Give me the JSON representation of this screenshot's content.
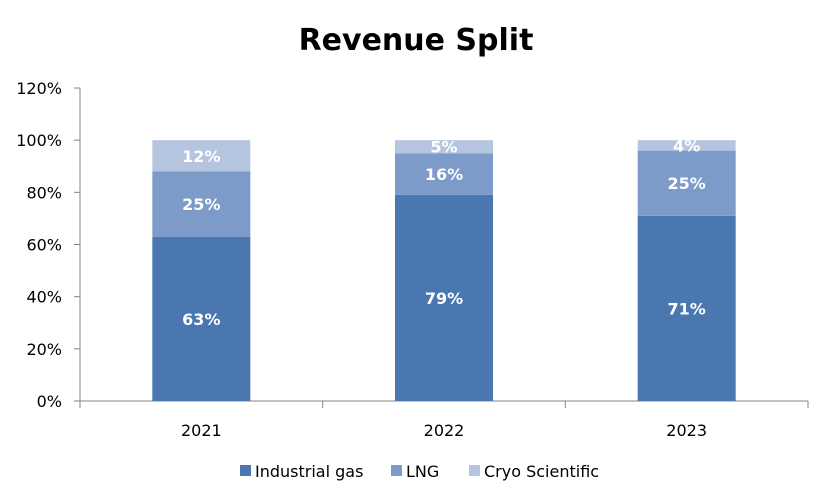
{
  "chart_data": {
    "type": "bar",
    "stacked": true,
    "title": "Revenue Split",
    "xlabel": "",
    "ylabel": "",
    "categories": [
      "2021",
      "2022",
      "2023"
    ],
    "series": [
      {
        "name": "Industrial gas",
        "values": [
          63,
          79,
          71
        ],
        "labels": [
          "63%",
          "79%",
          "71%"
        ],
        "color": "#4a77af"
      },
      {
        "name": "LNG",
        "values": [
          25,
          16,
          25
        ],
        "labels": [
          "25%",
          "16%",
          "25%"
        ],
        "color": "#7d9bc8"
      },
      {
        "name": "Cryo Scientific",
        "values": [
          12,
          5,
          4
        ],
        "labels": [
          "12%",
          "5%",
          "4%"
        ],
        "color": "#b5c4df"
      }
    ],
    "ylim": [
      0,
      120
    ],
    "yticks": [
      0,
      20,
      40,
      60,
      80,
      100,
      120
    ],
    "ytick_labels": [
      "0%",
      "20%",
      "40%",
      "60%",
      "80%",
      "100%",
      "120%"
    ],
    "grid": false,
    "legend": "bottom",
    "axis_color": "#868686"
  }
}
